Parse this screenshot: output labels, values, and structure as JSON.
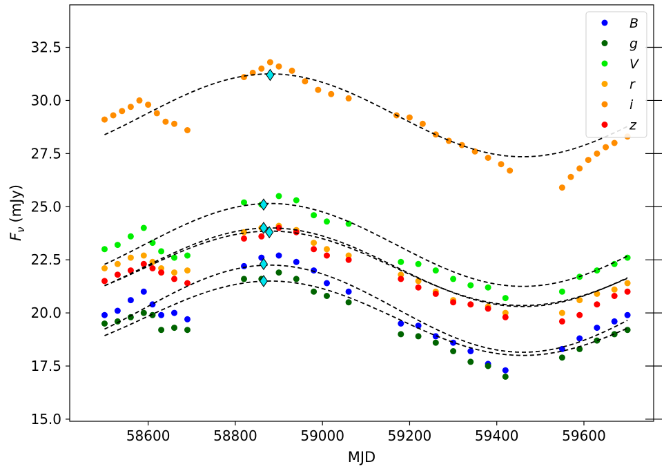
{
  "chart_data": {
    "type": "scatter",
    "xlabel": "MJD",
    "ylabel_main": "F",
    "ylabel_sub": "ν",
    "ylabel_unit": "(mJy)",
    "xlim": [
      58420,
      59760
    ],
    "ylim": [
      14.9,
      34.5
    ],
    "xticks": [
      58600,
      58800,
      59000,
      59200,
      59400,
      59600
    ],
    "xtick_labels": [
      "58600",
      "58800",
      "59000",
      "59200",
      "59400",
      "59600"
    ],
    "yticks": [
      15.0,
      17.5,
      20.0,
      22.5,
      25.0,
      27.5,
      30.0,
      32.5
    ],
    "ytick_labels": [
      "15.0",
      "17.5",
      "20.0",
      "22.5",
      "25.0",
      "27.5",
      "30.0",
      "32.5"
    ],
    "legend_position": "top-right",
    "series": [
      {
        "name": "B",
        "color": "#0000ff",
        "points": [
          [
            58500,
            19.9
          ],
          [
            58530,
            20.1
          ],
          [
            58560,
            20.6
          ],
          [
            58590,
            21.0
          ],
          [
            58610,
            20.4
          ],
          [
            58630,
            19.9
          ],
          [
            58660,
            20.0
          ],
          [
            58690,
            19.7
          ],
          [
            58820,
            22.2
          ],
          [
            58860,
            22.6
          ],
          [
            58900,
            22.7
          ],
          [
            58940,
            22.4
          ],
          [
            58980,
            22.0
          ],
          [
            59010,
            21.4
          ],
          [
            59060,
            21.0
          ],
          [
            59180,
            19.5
          ],
          [
            59220,
            19.4
          ],
          [
            59260,
            18.9
          ],
          [
            59300,
            18.6
          ],
          [
            59340,
            18.2
          ],
          [
            59380,
            17.6
          ],
          [
            59420,
            17.3
          ],
          [
            59550,
            18.3
          ],
          [
            59590,
            18.8
          ],
          [
            59630,
            19.3
          ],
          [
            59670,
            19.6
          ],
          [
            59700,
            19.9
          ]
        ]
      },
      {
        "name": "g",
        "color": "#006400",
        "points": [
          [
            58500,
            19.5
          ],
          [
            58530,
            19.6
          ],
          [
            58560,
            19.8
          ],
          [
            58590,
            20.0
          ],
          [
            58610,
            19.9
          ],
          [
            58630,
            19.2
          ],
          [
            58660,
            19.3
          ],
          [
            58690,
            19.2
          ],
          [
            58820,
            21.6
          ],
          [
            58860,
            21.6
          ],
          [
            58900,
            21.9
          ],
          [
            58940,
            21.6
          ],
          [
            58980,
            21.0
          ],
          [
            59010,
            20.8
          ],
          [
            59060,
            20.5
          ],
          [
            59180,
            19.0
          ],
          [
            59220,
            18.9
          ],
          [
            59260,
            18.6
          ],
          [
            59300,
            18.2
          ],
          [
            59340,
            17.7
          ],
          [
            59380,
            17.5
          ],
          [
            59420,
            17.0
          ],
          [
            59550,
            17.9
          ],
          [
            59590,
            18.3
          ],
          [
            59630,
            18.7
          ],
          [
            59670,
            19.0
          ],
          [
            59700,
            19.2
          ]
        ]
      },
      {
        "name": "V",
        "color": "#00ee00",
        "points": [
          [
            58500,
            23.0
          ],
          [
            58530,
            23.2
          ],
          [
            58560,
            23.6
          ],
          [
            58590,
            24.0
          ],
          [
            58610,
            23.3
          ],
          [
            58630,
            22.9
          ],
          [
            58660,
            22.6
          ],
          [
            58690,
            22.7
          ],
          [
            58820,
            25.2
          ],
          [
            58860,
            25.1
          ],
          [
            58900,
            25.5
          ],
          [
            58940,
            25.3
          ],
          [
            58980,
            24.6
          ],
          [
            59010,
            24.3
          ],
          [
            59060,
            24.2
          ],
          [
            59180,
            22.4
          ],
          [
            59220,
            22.3
          ],
          [
            59260,
            22.0
          ],
          [
            59300,
            21.6
          ],
          [
            59340,
            21.3
          ],
          [
            59380,
            21.2
          ],
          [
            59420,
            20.7
          ],
          [
            59550,
            21.0
          ],
          [
            59590,
            21.7
          ],
          [
            59630,
            22.0
          ],
          [
            59670,
            22.3
          ],
          [
            59700,
            22.6
          ]
        ]
      },
      {
        "name": "r",
        "color": "#ffa500",
        "points": [
          [
            58500,
            22.1
          ],
          [
            58530,
            22.3
          ],
          [
            58560,
            22.6
          ],
          [
            58590,
            22.7
          ],
          [
            58610,
            22.4
          ],
          [
            58630,
            22.1
          ],
          [
            58660,
            21.9
          ],
          [
            58690,
            22.0
          ],
          [
            58820,
            23.8
          ],
          [
            58860,
            24.0
          ],
          [
            58900,
            24.1
          ],
          [
            58940,
            23.9
          ],
          [
            58980,
            23.3
          ],
          [
            59010,
            23.0
          ],
          [
            59060,
            22.7
          ],
          [
            59180,
            21.8
          ],
          [
            59220,
            21.5
          ],
          [
            59260,
            21.0
          ],
          [
            59300,
            20.6
          ],
          [
            59340,
            20.4
          ],
          [
            59380,
            20.3
          ],
          [
            59420,
            20.0
          ],
          [
            59550,
            20.0
          ],
          [
            59590,
            20.6
          ],
          [
            59630,
            20.9
          ],
          [
            59670,
            21.1
          ],
          [
            59700,
            21.4
          ]
        ]
      },
      {
        "name": "i",
        "color": "#ff8c00",
        "points": [
          [
            58500,
            29.1
          ],
          [
            58520,
            29.3
          ],
          [
            58540,
            29.5
          ],
          [
            58560,
            29.7
          ],
          [
            58580,
            30.0
          ],
          [
            58600,
            29.8
          ],
          [
            58620,
            29.4
          ],
          [
            58640,
            29.0
          ],
          [
            58660,
            28.9
          ],
          [
            58690,
            28.6
          ],
          [
            58820,
            31.1
          ],
          [
            58840,
            31.3
          ],
          [
            58860,
            31.5
          ],
          [
            58880,
            31.8
          ],
          [
            58900,
            31.6
          ],
          [
            58930,
            31.4
          ],
          [
            58960,
            30.9
          ],
          [
            58990,
            30.5
          ],
          [
            59020,
            30.3
          ],
          [
            59060,
            30.1
          ],
          [
            59170,
            29.3
          ],
          [
            59200,
            29.2
          ],
          [
            59230,
            28.9
          ],
          [
            59260,
            28.4
          ],
          [
            59290,
            28.1
          ],
          [
            59320,
            27.9
          ],
          [
            59350,
            27.6
          ],
          [
            59380,
            27.3
          ],
          [
            59410,
            27.0
          ],
          [
            59430,
            26.7
          ],
          [
            59550,
            25.9
          ],
          [
            59570,
            26.4
          ],
          [
            59590,
            26.8
          ],
          [
            59610,
            27.2
          ],
          [
            59630,
            27.5
          ],
          [
            59650,
            27.8
          ],
          [
            59670,
            28.0
          ],
          [
            59700,
            28.3
          ]
        ]
      },
      {
        "name": "z",
        "color": "#ff0000",
        "points": [
          [
            58500,
            21.5
          ],
          [
            58530,
            21.8
          ],
          [
            58560,
            22.0
          ],
          [
            58590,
            22.3
          ],
          [
            58610,
            22.1
          ],
          [
            58630,
            21.9
          ],
          [
            58660,
            21.6
          ],
          [
            58690,
            21.4
          ],
          [
            58820,
            23.5
          ],
          [
            58860,
            23.6
          ],
          [
            58900,
            24.0
          ],
          [
            58940,
            23.8
          ],
          [
            58980,
            23.0
          ],
          [
            59010,
            22.7
          ],
          [
            59060,
            22.5
          ],
          [
            59180,
            21.6
          ],
          [
            59220,
            21.2
          ],
          [
            59260,
            20.9
          ],
          [
            59300,
            20.5
          ],
          [
            59340,
            20.4
          ],
          [
            59380,
            20.2
          ],
          [
            59420,
            19.8
          ],
          [
            59550,
            19.6
          ],
          [
            59590,
            19.9
          ],
          [
            59630,
            20.4
          ],
          [
            59670,
            20.8
          ],
          [
            59700,
            21.0
          ]
        ]
      }
    ],
    "fit_curves": [
      {
        "offset": 29.3,
        "amplitude": 1.95,
        "period": 1160,
        "peak_mjd": 58880,
        "xrange": [
          58500,
          59700
        ]
      },
      {
        "offset": 23.2,
        "amplitude": 1.95,
        "period": 1160,
        "peak_mjd": 58880,
        "xrange": [
          58500,
          59700
        ]
      },
      {
        "offset": 22.15,
        "amplitude": 1.85,
        "period": 1160,
        "peak_mjd": 58880,
        "xrange": [
          58500,
          59700
        ]
      },
      {
        "offset": 22.1,
        "amplitude": 1.75,
        "period": 1160,
        "peak_mjd": 58880,
        "xrange": [
          58500,
          59700
        ]
      },
      {
        "offset": 20.2,
        "amplitude": 2.05,
        "period": 1160,
        "peak_mjd": 58880,
        "xrange": [
          58500,
          59700
        ]
      },
      {
        "offset": 19.75,
        "amplitude": 1.75,
        "period": 1160,
        "peak_mjd": 58880,
        "xrange": [
          58500,
          59700
        ]
      }
    ],
    "peak_markers": {
      "color": "#00e5ee",
      "points": [
        [
          58880,
          31.2
        ],
        [
          58865,
          25.1
        ],
        [
          58865,
          24.0
        ],
        [
          58878,
          23.8
        ],
        [
          58865,
          22.3
        ],
        [
          58865,
          21.5
        ]
      ]
    }
  }
}
